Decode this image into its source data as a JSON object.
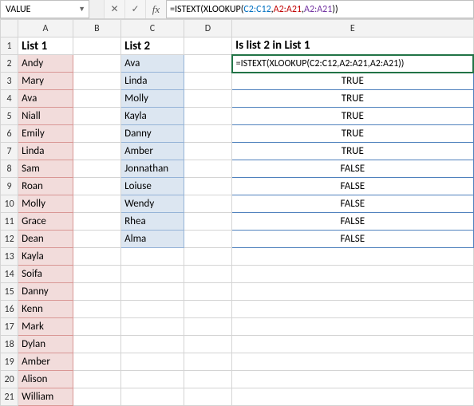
{
  "name_box": "VALUE",
  "formula": {
    "prefix": "=",
    "fn1_open": "ISTEXT(",
    "fn2_open": "XLOOKUP(",
    "arg1": "C2:C12",
    "sep1": ",",
    "arg2": "A2:A21",
    "sep2": ",",
    "arg3": "A2:A21",
    "close": "))"
  },
  "headers": {
    "A": "List 1",
    "C": "List 2",
    "E": "Is list 2 in List 1"
  },
  "listA": [
    "Andy",
    "Mary",
    "Ava",
    "Niall",
    "Emily",
    "Linda",
    "Sam",
    "Roan",
    "Molly",
    "Grace",
    "Dean",
    "Kayla",
    "Soifa",
    "Danny",
    "Kenn",
    "Mark",
    "Dylan",
    "Amber",
    "Alison",
    "William"
  ],
  "listC": [
    "Ava",
    "Linda",
    "Molly",
    "Kayla",
    "Danny",
    "Amber",
    "Jonnathan",
    "Loiuse",
    "Wendy",
    "Rhea",
    "Alma"
  ],
  "e_active": "=ISTEXT(XLOOKUP(C2:C12,A2:A21,A2:A21))",
  "resultsE": [
    "TRUE",
    "TRUE",
    "TRUE",
    "TRUE",
    "TRUE",
    "FALSE",
    "FALSE",
    "FALSE",
    "FALSE",
    "FALSE"
  ],
  "column_letters": [
    "A",
    "B",
    "C",
    "D",
    "E"
  ],
  "row_numbers": [
    "1",
    "2",
    "3",
    "4",
    "5",
    "6",
    "7",
    "8",
    "9",
    "10",
    "11",
    "12",
    "13",
    "14",
    "15",
    "16",
    "17",
    "18",
    "19",
    "20",
    "21"
  ],
  "colors": {
    "listA_bg": "#f2dcdb",
    "listA_border": "#d99795",
    "listC_bg": "#dce6f1",
    "listC_border": "#95b3d7",
    "spill_border": "#4f81bd",
    "active_border": "#217346",
    "grid": "#d4d4d4",
    "header_bg": "#f3f3f3"
  }
}
